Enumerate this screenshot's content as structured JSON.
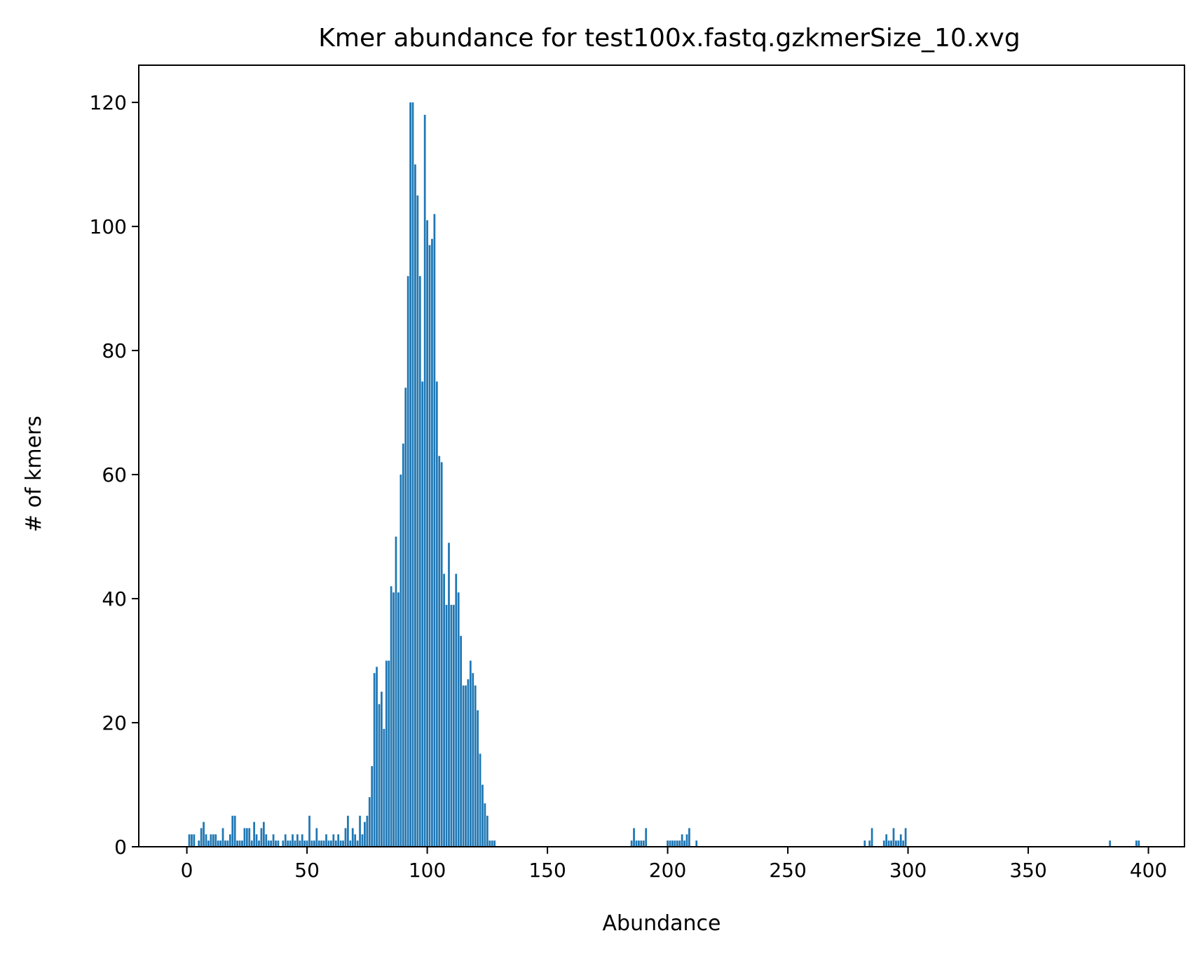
{
  "chart_data": {
    "type": "bar",
    "title": "Kmer abundance for test100x.fastq.gzkmerSize_10.xvg",
    "xlabel": "Abundance",
    "ylabel": "# of kmers",
    "xlim": [
      -20,
      415
    ],
    "ylim": [
      0,
      126
    ],
    "xticks": [
      0,
      50,
      100,
      150,
      200,
      250,
      300,
      350,
      400
    ],
    "yticks": [
      0,
      20,
      40,
      60,
      80,
      100,
      120
    ],
    "grid": false,
    "bar_color": "#1f77b4",
    "x": [
      1,
      2,
      3,
      5,
      6,
      7,
      8,
      9,
      10,
      11,
      12,
      13,
      14,
      15,
      16,
      17,
      18,
      19,
      20,
      21,
      22,
      23,
      24,
      25,
      26,
      27,
      28,
      29,
      30,
      31,
      32,
      33,
      34,
      35,
      36,
      37,
      38,
      40,
      41,
      42,
      43,
      44,
      45,
      46,
      47,
      48,
      49,
      50,
      51,
      52,
      53,
      54,
      55,
      56,
      57,
      58,
      59,
      60,
      61,
      62,
      63,
      64,
      65,
      66,
      67,
      68,
      69,
      70,
      71,
      72,
      73,
      74,
      75,
      76,
      77,
      78,
      79,
      80,
      81,
      82,
      83,
      84,
      85,
      86,
      87,
      88,
      89,
      90,
      91,
      92,
      93,
      94,
      95,
      96,
      97,
      98,
      99,
      100,
      101,
      102,
      103,
      104,
      105,
      106,
      107,
      108,
      109,
      110,
      111,
      112,
      113,
      114,
      115,
      116,
      117,
      118,
      119,
      120,
      121,
      122,
      123,
      124,
      125,
      126,
      127,
      128,
      185,
      186,
      187,
      188,
      189,
      190,
      191,
      200,
      201,
      202,
      203,
      204,
      205,
      206,
      207,
      208,
      209,
      212,
      282,
      284,
      285,
      290,
      291,
      292,
      293,
      294,
      295,
      296,
      297,
      298,
      299,
      384,
      395,
      396
    ],
    "values": [
      2,
      2,
      2,
      1,
      3,
      4,
      2,
      1,
      2,
      2,
      2,
      1,
      1,
      3,
      1,
      1,
      2,
      5,
      5,
      1,
      1,
      1,
      3,
      3,
      3,
      1,
      4,
      2,
      1,
      3,
      4,
      2,
      1,
      1,
      2,
      1,
      1,
      1,
      2,
      1,
      1,
      2,
      1,
      2,
      1,
      2,
      1,
      1,
      5,
      1,
      1,
      3,
      1,
      1,
      1,
      2,
      1,
      1,
      2,
      1,
      2,
      1,
      1,
      3,
      5,
      1,
      3,
      2,
      1,
      5,
      2,
      4,
      5,
      8,
      13,
      28,
      29,
      23,
      25,
      19,
      30,
      30,
      42,
      41,
      50,
      41,
      60,
      65,
      74,
      92,
      120,
      120,
      110,
      105,
      92,
      75,
      118,
      101,
      97,
      98,
      102,
      75,
      63,
      62,
      44,
      39,
      49,
      39,
      39,
      44,
      41,
      34,
      26,
      26,
      27,
      30,
      28,
      26,
      22,
      15,
      10,
      7,
      5,
      1,
      1,
      1,
      1,
      3,
      1,
      1,
      1,
      1,
      3,
      1,
      1,
      1,
      1,
      1,
      1,
      2,
      1,
      2,
      3,
      1,
      1,
      1,
      3,
      1,
      2,
      1,
      1,
      3,
      1,
      1,
      2,
      1,
      3,
      1,
      1,
      1
    ]
  }
}
